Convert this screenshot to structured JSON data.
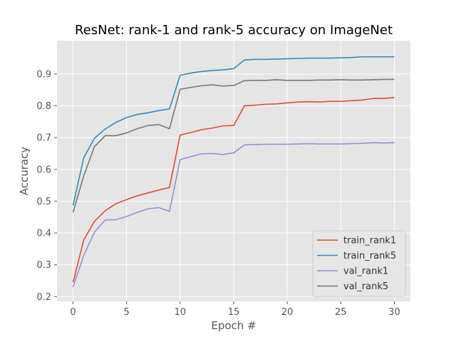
{
  "chart_data": {
    "type": "line",
    "title": "ResNet: rank-1 and rank-5 accuracy on ImageNet",
    "xlabel": "Epoch #",
    "ylabel": "Accuracy",
    "xlim": [
      -1.5,
      31.5
    ],
    "ylim": [
      0.185,
      1.005
    ],
    "x_ticks": [
      0,
      5,
      10,
      15,
      20,
      25,
      30
    ],
    "y_ticks": [
      0.2,
      0.3,
      0.4,
      0.5,
      0.6,
      0.7,
      0.8,
      0.9
    ],
    "grid": true,
    "legend_position": "lower-right",
    "x": [
      0,
      1,
      2,
      3,
      4,
      5,
      6,
      7,
      8,
      9,
      10,
      11,
      12,
      13,
      14,
      15,
      16,
      17,
      18,
      19,
      20,
      21,
      22,
      23,
      24,
      25,
      26,
      27,
      28,
      29,
      30
    ],
    "series": [
      {
        "name": "train_rank1",
        "color": "#e24a33",
        "values": [
          0.245,
          0.378,
          0.437,
          0.47,
          0.492,
          0.505,
          0.517,
          0.526,
          0.535,
          0.543,
          0.708,
          0.716,
          0.725,
          0.73,
          0.737,
          0.738,
          0.8,
          0.802,
          0.805,
          0.806,
          0.809,
          0.812,
          0.813,
          0.812,
          0.814,
          0.814,
          0.816,
          0.818,
          0.823,
          0.823,
          0.826
        ]
      },
      {
        "name": "train_rank5",
        "color": "#348abd",
        "values": [
          0.487,
          0.637,
          0.698,
          0.727,
          0.748,
          0.763,
          0.773,
          0.778,
          0.785,
          0.79,
          0.896,
          0.903,
          0.908,
          0.911,
          0.913,
          0.917,
          0.944,
          0.946,
          0.946,
          0.947,
          0.948,
          0.949,
          0.95,
          0.95,
          0.95,
          0.951,
          0.952,
          0.954,
          0.954,
          0.954,
          0.954
        ]
      },
      {
        "name": "val_rank1",
        "color": "#988ed5",
        "values": [
          0.23,
          0.33,
          0.403,
          0.441,
          0.442,
          0.452,
          0.465,
          0.476,
          0.48,
          0.468,
          0.631,
          0.64,
          0.649,
          0.65,
          0.647,
          0.652,
          0.677,
          0.678,
          0.679,
          0.679,
          0.679,
          0.68,
          0.681,
          0.68,
          0.68,
          0.68,
          0.681,
          0.682,
          0.684,
          0.683,
          0.684
        ]
      },
      {
        "name": "val_rank5",
        "color": "#777777",
        "values": [
          0.465,
          0.58,
          0.672,
          0.706,
          0.706,
          0.715,
          0.728,
          0.738,
          0.741,
          0.728,
          0.852,
          0.858,
          0.863,
          0.866,
          0.862,
          0.864,
          0.879,
          0.88,
          0.88,
          0.882,
          0.88,
          0.88,
          0.88,
          0.881,
          0.881,
          0.882,
          0.881,
          0.881,
          0.882,
          0.883,
          0.883
        ]
      }
    ]
  }
}
